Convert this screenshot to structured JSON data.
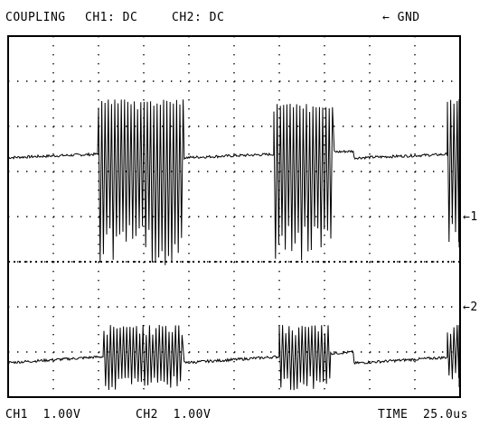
{
  "header": {
    "coupling": "COUPLING",
    "ch1": "CH1: DC",
    "ch2": "CH2: DC",
    "gnd": "← GND"
  },
  "footer": {
    "ch1": "CH1  1.00V",
    "ch2": "CH2  1.00V",
    "time": "TIME  25.0us"
  },
  "markers": {
    "ch1": "←1",
    "ch2": "←2"
  },
  "chart_data": {
    "type": "line",
    "grid": "10 x 8 dotted divisions",
    "x_unit": "us",
    "y_unit": "V",
    "x_scale_per_div": 25.0,
    "y_scale_per_div": 1.0,
    "xlim": [
      0,
      250
    ],
    "series": [
      {
        "name": "CH1",
        "ground_div_from_top": 5,
        "baseline_levels_div": [
          2.3,
          2.45
        ],
        "bursts": [
          {
            "start_us": 50,
            "end_us": 97,
            "min_level_div": -0.1,
            "max_level_div": 3.6
          },
          {
            "start_us": 147,
            "end_us": 180,
            "min_level_div": -0.1,
            "max_level_div": 3.5
          },
          {
            "start_us": 243,
            "end_us": 283,
            "min_level_div": 0.3,
            "max_level_div": 3.6
          }
        ]
      },
      {
        "name": "CH2",
        "ground_div_from_top": 6.5,
        "baseline_levels_div": [
          -0.75,
          -0.5
        ],
        "bursts": [
          {
            "start_us": 53,
            "end_us": 97,
            "min_level_div": -1.35,
            "max_level_div": 0.1
          },
          {
            "start_us": 150,
            "end_us": 178,
            "min_level_div": -1.35,
            "max_level_div": 0.1
          },
          {
            "start_us": 243,
            "end_us": 281,
            "min_level_div": -1.3,
            "max_level_div": 0.1
          }
        ]
      }
    ]
  }
}
